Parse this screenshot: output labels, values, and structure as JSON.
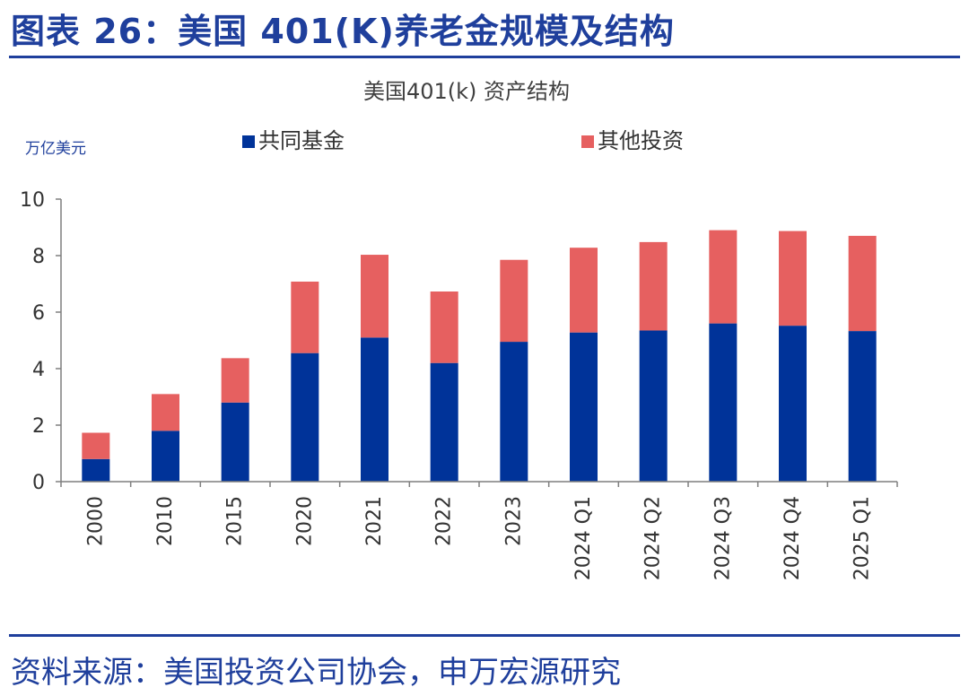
{
  "figure": {
    "title": "图表 26：美国 401(K)养老金规模及结构",
    "source": "资料来源：美国投资公司协会，申万宏源研究"
  },
  "chart_data": {
    "type": "bar",
    "stacked": true,
    "title": "美国401(k) 资产结构",
    "ylabel": "万亿美元",
    "xlabel": "",
    "ylim": [
      0,
      10
    ],
    "yticks": [
      0,
      2,
      4,
      6,
      8,
      10
    ],
    "categories": [
      "2000",
      "2010",
      "2015",
      "2020",
      "2021",
      "2022",
      "2023",
      "2024 Q1",
      "2024 Q2",
      "2024 Q3",
      "2024 Q4",
      "2025 Q1"
    ],
    "series": [
      {
        "name": "共同基金",
        "color": "#003399",
        "values": [
          0.8,
          1.8,
          2.8,
          4.55,
          5.1,
          4.2,
          4.95,
          5.28,
          5.35,
          5.6,
          5.52,
          5.33
        ]
      },
      {
        "name": "其他投资",
        "color": "#e66060",
        "values": [
          0.93,
          1.3,
          1.57,
          2.53,
          2.93,
          2.53,
          2.9,
          3.0,
          3.13,
          3.3,
          3.35,
          3.37
        ]
      }
    ],
    "legend_position": "top"
  }
}
